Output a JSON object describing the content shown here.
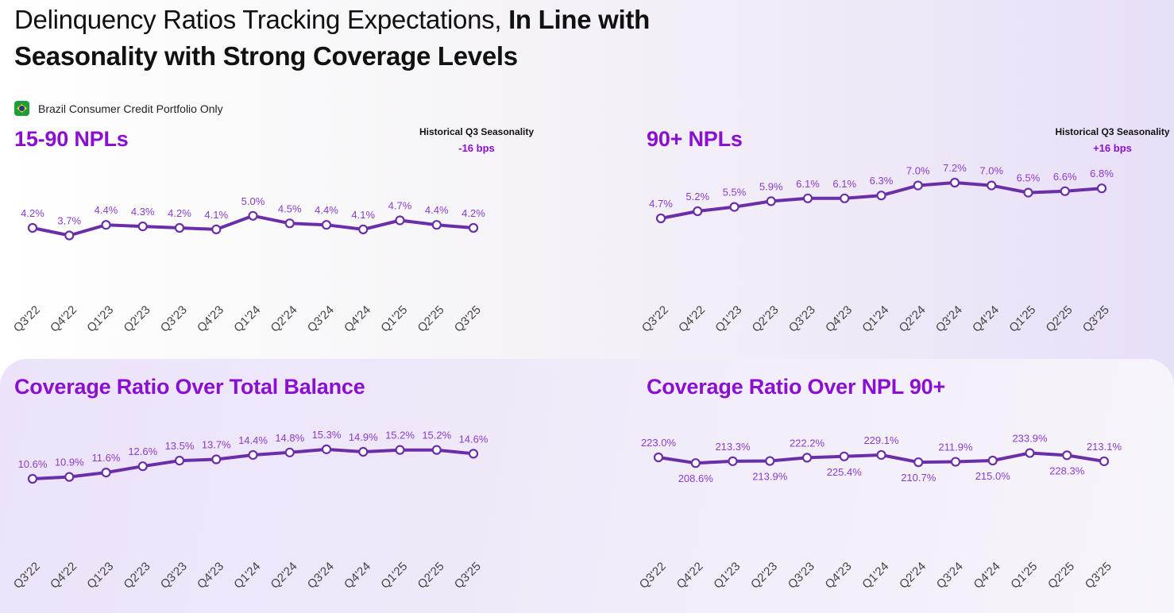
{
  "header": {
    "title_regular": "Delinquency Ratios Tracking Expectations, ",
    "title_bold": "In Line with Seasonality with Strong Coverage Levels",
    "subtitle": "Brazil Consumer Credit Portfolio Only",
    "flag_icon": "brazil-flag-icon"
  },
  "colors": {
    "title_purple": "#8a0fd0",
    "line_purple": "#6a2ea8",
    "label_purple": "#8b3ccf"
  },
  "chart_data": [
    {
      "id": "npl-15-90",
      "type": "line",
      "title": "15-90 NPLs",
      "annotation": {
        "label": "Historical Q3 Seasonality",
        "value": "-16 bps"
      },
      "categories": [
        "Q3'22",
        "Q4'22",
        "Q1'23",
        "Q2'23",
        "Q3'23",
        "Q4'23",
        "Q1'24",
        "Q2'24",
        "Q3'24",
        "Q4'24",
        "Q1'25",
        "Q2'25",
        "Q3'25"
      ],
      "values": [
        4.2,
        3.7,
        4.4,
        4.3,
        4.2,
        4.1,
        5.0,
        4.5,
        4.4,
        4.1,
        4.7,
        4.4,
        4.2
      ],
      "labels": [
        "4.2%",
        "3.7%",
        "4.4%",
        "4.3%",
        "4.2%",
        "4.1%",
        "5.0%",
        "4.5%",
        "4.4%",
        "4.1%",
        "4.7%",
        "4.4%",
        "4.2%"
      ],
      "unit": "%",
      "grid": false
    },
    {
      "id": "npl-90-plus",
      "type": "line",
      "title": "90+ NPLs",
      "annotation": {
        "label": "Historical Q3 Seasonality",
        "value": "+16 bps"
      },
      "categories": [
        "Q3'22",
        "Q4'22",
        "Q1'23",
        "Q2'23",
        "Q3'23",
        "Q4'23",
        "Q1'24",
        "Q2'24",
        "Q3'24",
        "Q4'24",
        "Q1'25",
        "Q2'25",
        "Q3'25"
      ],
      "values": [
        4.7,
        5.2,
        5.5,
        5.9,
        6.1,
        6.1,
        6.3,
        7.0,
        7.2,
        7.0,
        6.5,
        6.6,
        6.8
      ],
      "labels": [
        "4.7%",
        "5.2%",
        "5.5%",
        "5.9%",
        "6.1%",
        "6.1%",
        "6.3%",
        "7.0%",
        "7.2%",
        "7.0%",
        "6.5%",
        "6.6%",
        "6.8%"
      ],
      "unit": "%",
      "grid": false
    },
    {
      "id": "coverage-total-balance",
      "type": "line",
      "title": "Coverage Ratio Over Total Balance",
      "categories": [
        "Q3'22",
        "Q4'22",
        "Q1'23",
        "Q2'23",
        "Q3'23",
        "Q4'23",
        "Q1'24",
        "Q2'24",
        "Q3'24",
        "Q4'24",
        "Q1'25",
        "Q2'25",
        "Q3'25"
      ],
      "values": [
        10.6,
        10.9,
        11.6,
        12.6,
        13.5,
        13.7,
        14.4,
        14.8,
        15.3,
        14.9,
        15.2,
        15.2,
        14.6
      ],
      "labels": [
        "10.6%",
        "10.9%",
        "11.6%",
        "12.6%",
        "13.5%",
        "13.7%",
        "14.4%",
        "14.8%",
        "15.3%",
        "14.9%",
        "15.2%",
        "15.2%",
        "14.6%"
      ],
      "unit": "%",
      "grid": false
    },
    {
      "id": "coverage-npl-90",
      "type": "line",
      "title": "Coverage Ratio Over NPL 90+",
      "categories": [
        "Q3'22",
        "Q4'22",
        "Q1'23",
        "Q2'23",
        "Q3'23",
        "Q4'23",
        "Q1'24",
        "Q2'24",
        "Q3'24",
        "Q4'24",
        "Q1'25",
        "Q2'25",
        "Q3'25"
      ],
      "values": [
        223.0,
        208.6,
        213.3,
        213.9,
        222.2,
        225.4,
        229.1,
        210.7,
        211.9,
        215.0,
        233.9,
        228.3,
        213.1
      ],
      "labels": [
        "223.0%",
        "208.6%",
        "213.3%",
        "213.9%",
        "222.2%",
        "225.4%",
        "229.1%",
        "210.7%",
        "211.9%",
        "215.0%",
        "233.9%",
        "228.3%",
        "213.1%"
      ],
      "label_positions": [
        "above",
        "below",
        "above",
        "below",
        "above",
        "below",
        "above",
        "below",
        "above",
        "below",
        "above",
        "below",
        "above"
      ],
      "unit": "%",
      "grid": false
    }
  ]
}
